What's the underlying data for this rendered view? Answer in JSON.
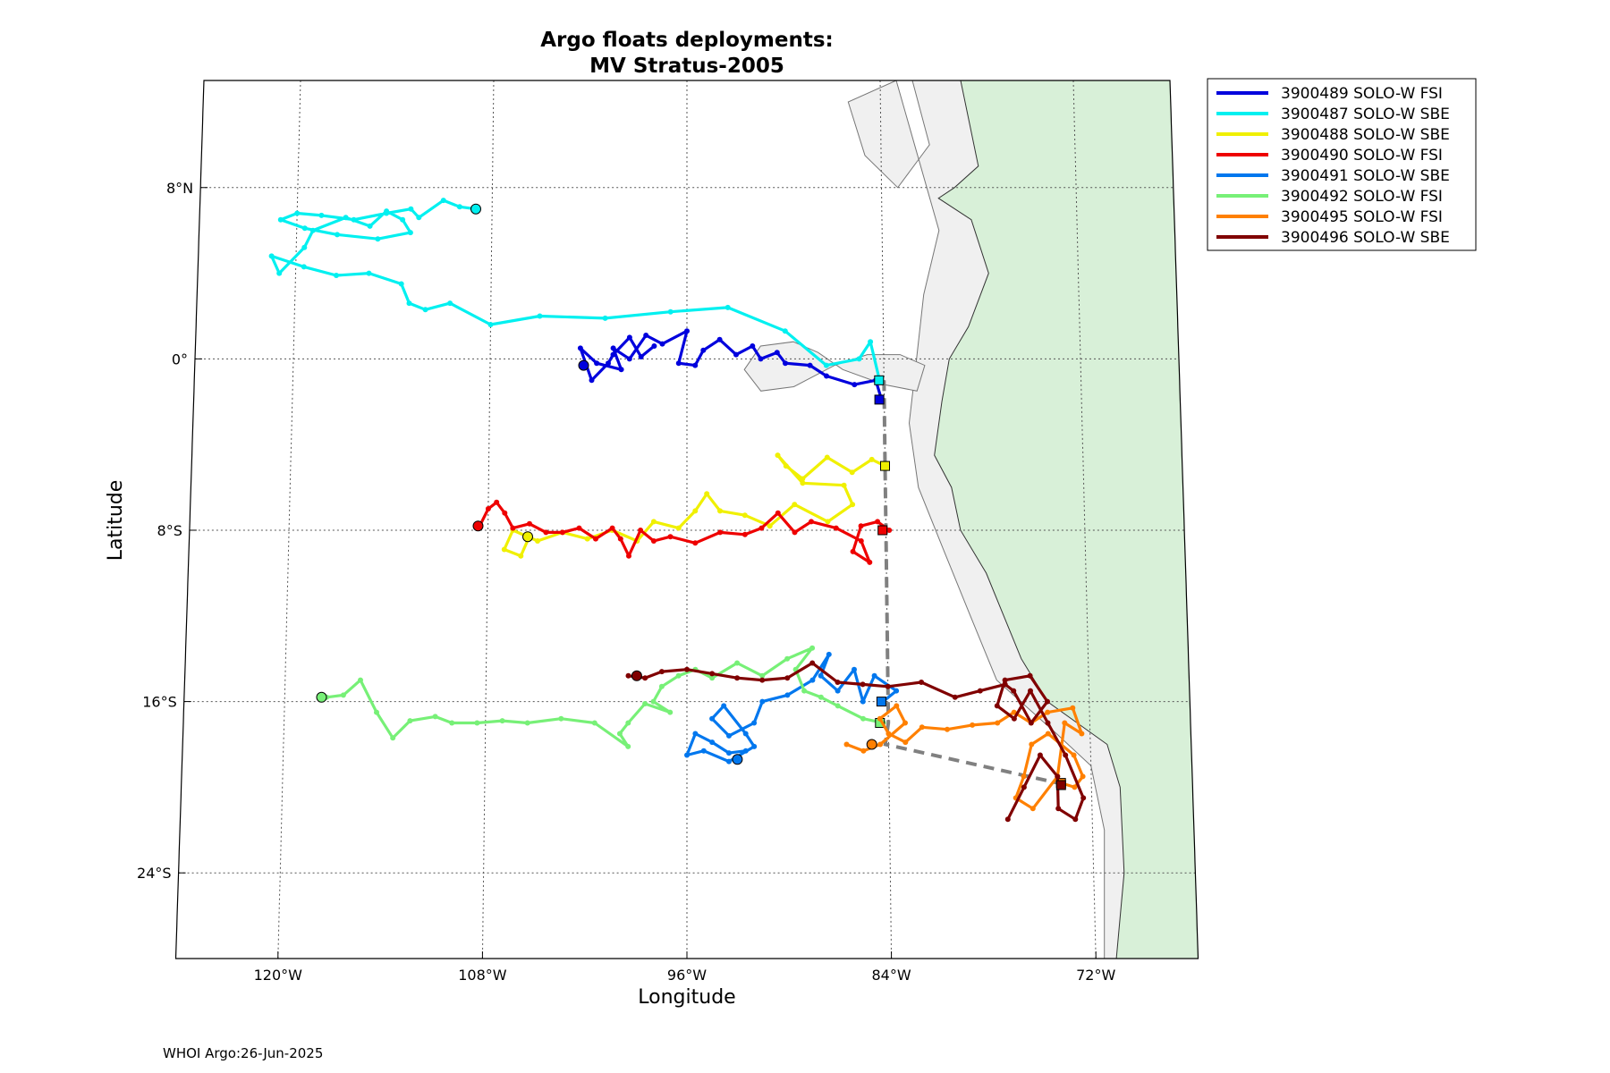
{
  "figure": {
    "footer": "WHOI Argo:26-Jun-2025"
  },
  "colors": {
    "land": "#d8f0d8",
    "shelf": "#f0f0f0",
    "grid": "#555555",
    "track_cruise": "#808080"
  },
  "chart_data": {
    "type": "line",
    "title": "Argo floats deployments:",
    "subtitle": "MV Stratus-2005",
    "xlabel": "Longitude",
    "ylabel": "Latitude",
    "xlim": [
      -126,
      -66
    ],
    "ylim": [
      -28,
      13
    ],
    "grid": true,
    "legend_position": "outside-top-right",
    "x_ticks": [
      {
        "value": -120,
        "label": "120°W"
      },
      {
        "value": -108,
        "label": "108°W"
      },
      {
        "value": -96,
        "label": "96°W"
      },
      {
        "value": -84,
        "label": "84°W"
      },
      {
        "value": -72,
        "label": "72°W"
      }
    ],
    "y_ticks": [
      {
        "value": 8,
        "label": "8°N"
      },
      {
        "value": 0,
        "label": "0°"
      },
      {
        "value": -8,
        "label": "8°S"
      },
      {
        "value": -16,
        "label": "16°S"
      },
      {
        "value": -24,
        "label": "24°S"
      }
    ],
    "series": [
      {
        "name": "3900489 SOLO-W FSI",
        "color": "#0000dd",
        "x": [
          -84.2,
          -84.5,
          -85.8,
          -87.5,
          -88.5,
          -90.0,
          -90.5,
          -91.5,
          -92.0,
          -93.0,
          -94.0,
          -95.0,
          -95.5,
          -96.5,
          -96.0,
          -97.5,
          -98.5,
          -99.5,
          -100.5,
          -100.0,
          -101.5,
          -102.5,
          -101.8,
          -100.8,
          -100.5,
          -99.5,
          -98.8,
          -98.0
        ],
        "y": [
          -1.8,
          -1.0,
          -1.2,
          -0.8,
          -0.3,
          -0.2,
          0.3,
          0.0,
          0.6,
          0.2,
          0.9,
          0.4,
          -0.3,
          -0.2,
          1.3,
          0.7,
          1.1,
          0.0,
          0.5,
          -0.5,
          -0.2,
          0.5,
          -1.0,
          -0.2,
          0.2,
          1.0,
          0.1,
          0.6
        ],
        "start": [
          -84.3,
          -1.9
        ],
        "end": [
          -102.3,
          -0.3
        ]
      },
      {
        "name": "3900487 SOLO-W SBE",
        "color": "#00f0f0",
        "x": [
          -84.3,
          -84.8,
          -85.5,
          -87.5,
          -90.0,
          -93.5,
          -97.0,
          -101.0,
          -105.0,
          -108.0,
          -110.5,
          -112.0,
          -113.0,
          -113.5,
          -115.5,
          -117.5,
          -119.5,
          -121.5,
          -121.0,
          -119.5,
          -119.0,
          -117.0,
          -115.5,
          -114.5,
          -113.5,
          -113.0,
          -115.0,
          -117.5,
          -119.5,
          -121.0,
          -120.0,
          -118.5,
          -116.5,
          -114.5,
          -113.0,
          -112.5,
          -111.0,
          -110.0,
          -109.0
        ],
        "y": [
          -0.9,
          0.8,
          0.0,
          -0.3,
          1.3,
          2.4,
          2.2,
          1.9,
          2.0,
          1.6,
          2.6,
          2.3,
          2.6,
          3.5,
          4.0,
          3.9,
          4.3,
          4.8,
          4.0,
          5.2,
          6.0,
          6.6,
          6.2,
          6.9,
          6.5,
          5.9,
          5.6,
          5.8,
          6.1,
          6.5,
          6.8,
          6.7,
          6.5,
          6.8,
          7.0,
          6.6,
          7.4,
          7.1,
          7.0
        ],
        "start": [
          -84.3,
          -1.0
        ],
        "end": [
          -109.0,
          7.0
        ]
      },
      {
        "name": "3900488 SOLO-W SBE",
        "color": "#f0f000",
        "x": [
          -84.0,
          -84.8,
          -86.0,
          -87.5,
          -89.0,
          -90.0,
          -90.5,
          -89.0,
          -86.5,
          -86.0,
          -87.5,
          -89.5,
          -91.0,
          -92.5,
          -94.0,
          -94.8,
          -95.5,
          -96.5,
          -98.0,
          -99.0,
          -100.5,
          -102.0,
          -103.5,
          -105.0,
          -106.5,
          -107.0,
          -106.0,
          -105.5
        ],
        "y": [
          -5.0,
          -4.7,
          -5.3,
          -4.6,
          -5.6,
          -5.0,
          -4.5,
          -5.8,
          -5.9,
          -6.8,
          -7.6,
          -6.8,
          -7.8,
          -7.3,
          -7.1,
          -6.3,
          -7.1,
          -7.9,
          -7.6,
          -8.5,
          -8.0,
          -8.4,
          -8.1,
          -8.5,
          -8.0,
          -8.9,
          -9.2,
          -8.3
        ],
        "start": [
          -84.0,
          -5.0
        ],
        "end": [
          -105.6,
          -8.3
        ]
      },
      {
        "name": "3900490 SOLO-W FSI",
        "color": "#ee0000",
        "x": [
          -83.8,
          -84.5,
          -85.5,
          -86.0,
          -85.0,
          -85.5,
          -87.0,
          -88.5,
          -89.5,
          -90.5,
          -91.5,
          -92.5,
          -94.0,
          -95.5,
          -97.0,
          -98.0,
          -98.8,
          -99.5,
          -100.0,
          -100.5,
          -101.5,
          -102.5,
          -103.5,
          -104.5,
          -105.5,
          -106.5,
          -107.0,
          -107.5,
          -108.0,
          -108.5
        ],
        "y": [
          -8.0,
          -7.6,
          -7.8,
          -9.0,
          -9.5,
          -8.5,
          -7.9,
          -7.6,
          -8.1,
          -7.2,
          -7.9,
          -8.2,
          -8.1,
          -8.6,
          -8.3,
          -8.5,
          -8.0,
          -9.2,
          -8.4,
          -7.9,
          -8.4,
          -7.9,
          -8.1,
          -8.1,
          -7.7,
          -7.9,
          -7.2,
          -6.7,
          -7.0,
          -7.8
        ],
        "start": [
          -84.2,
          -8.0
        ],
        "end": [
          -108.6,
          -7.8
        ]
      },
      {
        "name": "3900491 SOLO-W SBE",
        "color": "#0077ee",
        "x": [
          -84.3,
          -83.5,
          -84.8,
          -85.5,
          -86.0,
          -87.0,
          -88.0,
          -87.5,
          -88.5,
          -90.0,
          -91.5,
          -92.0,
          -93.5,
          -94.5,
          -93.8,
          -92.5,
          -92.0,
          -93.5,
          -95.0,
          -96.0,
          -95.5,
          -94.5,
          -93.5,
          -92.5
        ],
        "y": [
          -16.0,
          -15.5,
          -14.8,
          -16.0,
          -14.5,
          -15.5,
          -14.8,
          -13.8,
          -15.0,
          -15.7,
          -16.0,
          -17.0,
          -17.6,
          -16.8,
          -16.2,
          -17.5,
          -18.1,
          -18.8,
          -18.3,
          -18.5,
          -17.5,
          -17.9,
          -18.4,
          -18.3
        ],
        "start": [
          -84.4,
          -16.0
        ],
        "end": [
          -93.0,
          -18.7
        ]
      },
      {
        "name": "3900492 SOLO-W FSI",
        "color": "#77f077",
        "x": [
          -84.3,
          -85.5,
          -87.0,
          -88.0,
          -89.0,
          -89.5,
          -88.5,
          -90.0,
          -91.5,
          -93.0,
          -94.5,
          -95.5,
          -96.5,
          -97.5,
          -98.0,
          -97.0,
          -98.5,
          -99.5,
          -100.0,
          -99.5,
          -101.5,
          -103.5,
          -105.5,
          -107.0,
          -108.5,
          -110.0,
          -111.0,
          -112.5,
          -113.5,
          -114.5,
          -115.5,
          -116.5,
          -117.5
        ],
        "y": [
          -17.0,
          -16.8,
          -16.2,
          -15.8,
          -15.5,
          -14.5,
          -13.5,
          -14.0,
          -14.8,
          -14.2,
          -14.9,
          -14.5,
          -14.8,
          -15.3,
          -16.0,
          -16.5,
          -16.1,
          -17.0,
          -17.5,
          -18.1,
          -17.0,
          -16.8,
          -17.0,
          -16.9,
          -17.0,
          -17.0,
          -16.7,
          -16.9,
          -17.7,
          -16.5,
          -15.0,
          -15.7,
          -15.8
        ],
        "start": [
          -84.5,
          -17.0
        ],
        "end": [
          -117.8,
          -15.8
        ]
      },
      {
        "name": "3900495 SOLO-W FSI",
        "color": "#ff8000",
        "x": [
          -73.8,
          -73.0,
          -72.5,
          -73.0,
          -74.5,
          -75.5,
          -76.0,
          -76.5,
          -75.5,
          -74.0,
          -73.5,
          -72.5,
          -73.0,
          -74.5,
          -75.5,
          -76.5,
          -77.5,
          -79.0,
          -80.5,
          -82.0,
          -83.0,
          -84.0,
          -84.5,
          -83.5,
          -83.0,
          -84.5,
          -85.5,
          -86.5
        ],
        "y": [
          -19.8,
          -20.0,
          -19.5,
          -18.5,
          -17.5,
          -18.0,
          -19.5,
          -20.5,
          -21.0,
          -19.5,
          -17.0,
          -17.5,
          -16.3,
          -16.5,
          -17.0,
          -16.5,
          -17.0,
          -17.1,
          -17.3,
          -17.2,
          -17.9,
          -17.5,
          -16.8,
          -16.2,
          -17.0,
          -18.0,
          -18.3,
          -18.0
        ],
        "start": [
          -73.8,
          -19.8
        ],
        "end": [
          -85.0,
          -18.0
        ]
      },
      {
        "name": "3900496 SOLO-W SBE",
        "color": "#800000",
        "x": [
          -77.0,
          -76.0,
          -75.0,
          -74.0,
          -74.0,
          -73.0,
          -72.5,
          -73.5,
          -74.5,
          -75.5,
          -76.5,
          -77.5,
          -77.0,
          -75.5,
          -74.5,
          -75.5,
          -76.5,
          -77.0,
          -78.5,
          -80.0,
          -82.0,
          -84.0,
          -85.5,
          -87.0,
          -88.5,
          -90.0,
          -91.5,
          -93.0,
          -94.5,
          -96.0,
          -97.5,
          -98.5,
          -99.5
        ],
        "y": [
          -21.5,
          -20.0,
          -18.5,
          -19.5,
          -21.0,
          -21.5,
          -20.5,
          -18.5,
          -17.0,
          -15.5,
          -16.8,
          -16.2,
          -15.0,
          -14.8,
          -16.0,
          -17.0,
          -15.5,
          -15.2,
          -15.5,
          -15.8,
          -15.1,
          -15.3,
          -15.2,
          -15.1,
          -14.2,
          -14.9,
          -15.0,
          -14.9,
          -14.7,
          -14.5,
          -14.6,
          -14.9,
          -14.8
        ],
        "start": [
          -73.8,
          -19.9
        ],
        "end": [
          -99.0,
          -14.8
        ]
      }
    ],
    "cruise_track": {
      "x": [
        -84.0,
        -84.0,
        -84.0,
        -84.0,
        -84.0,
        -84.0,
        -84.2,
        -74.0
      ],
      "y": [
        -1.0,
        -1.9,
        -5.0,
        -8.0,
        -16.0,
        -17.0,
        -18.0,
        -19.8
      ]
    }
  }
}
